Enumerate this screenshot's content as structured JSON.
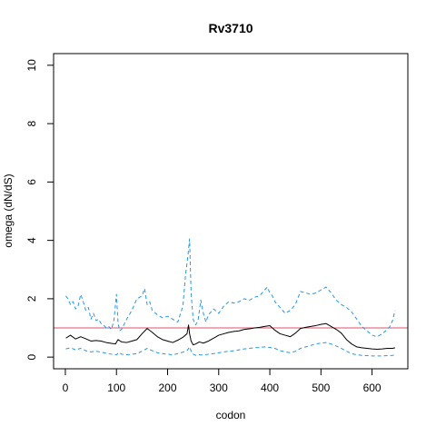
{
  "chart_data": {
    "type": "line",
    "title": "Rv3710",
    "xlabel": "codon",
    "ylabel": "omega (dN/dS)",
    "xlim": [
      -23,
      670
    ],
    "ylim": [
      -0.4,
      10.4
    ],
    "xticks": [
      0,
      100,
      200,
      300,
      400,
      500,
      600
    ],
    "yticks": [
      0,
      2,
      4,
      6,
      8,
      10
    ],
    "grid": false,
    "legend": "none",
    "reference_line": {
      "y": 1,
      "color": "#DF536B"
    },
    "series": [
      {
        "role": "estimate",
        "color": "#000000",
        "dash": "solid",
        "x": [
          1,
          10,
          20,
          30,
          40,
          50,
          60,
          70,
          80,
          90,
          98,
          103,
          110,
          120,
          130,
          140,
          150,
          160,
          170,
          180,
          190,
          200,
          210,
          220,
          230,
          238,
          241,
          243,
          246,
          250,
          255,
          262,
          270,
          280,
          290,
          300,
          310,
          320,
          330,
          340,
          350,
          360,
          370,
          380,
          390,
          400,
          410,
          420,
          430,
          440,
          450,
          460,
          470,
          480,
          490,
          500,
          510,
          520,
          530,
          540,
          550,
          560,
          570,
          580,
          590,
          600,
          610,
          620,
          630,
          640,
          645
        ],
        "y": [
          0.65,
          0.75,
          0.62,
          0.7,
          0.63,
          0.55,
          0.57,
          0.55,
          0.5,
          0.47,
          0.45,
          0.6,
          0.52,
          0.5,
          0.55,
          0.6,
          0.8,
          0.98,
          0.85,
          0.7,
          0.6,
          0.55,
          0.5,
          0.58,
          0.68,
          0.8,
          1.1,
          0.8,
          0.55,
          0.42,
          0.45,
          0.52,
          0.48,
          0.55,
          0.65,
          0.75,
          0.8,
          0.85,
          0.88,
          0.9,
          0.95,
          0.97,
          1.0,
          1.02,
          1.05,
          1.08,
          0.92,
          0.8,
          0.75,
          0.7,
          0.82,
          0.98,
          1.02,
          1.05,
          1.08,
          1.12,
          1.15,
          1.05,
          0.95,
          0.82,
          0.6,
          0.45,
          0.35,
          0.32,
          0.3,
          0.28,
          0.27,
          0.28,
          0.3,
          0.3,
          0.32
        ]
      },
      {
        "role": "upper-interval",
        "color": "#2297E6",
        "dash": "dashed",
        "x": [
          1,
          5,
          10,
          15,
          20,
          25,
          30,
          35,
          40,
          45,
          50,
          55,
          60,
          65,
          70,
          75,
          80,
          85,
          90,
          95,
          100,
          103,
          106,
          110,
          120,
          130,
          140,
          150,
          155,
          160,
          165,
          170,
          180,
          190,
          200,
          210,
          220,
          230,
          235,
          240,
          243,
          246,
          250,
          255,
          260,
          265,
          270,
          275,
          280,
          290,
          300,
          310,
          320,
          330,
          340,
          350,
          360,
          370,
          380,
          390,
          395,
          400,
          405,
          410,
          420,
          430,
          440,
          450,
          460,
          470,
          480,
          490,
          500,
          510,
          520,
          530,
          540,
          550,
          560,
          570,
          580,
          590,
          600,
          610,
          620,
          630,
          635,
          640,
          645
        ],
        "y": [
          2.1,
          2.0,
          1.8,
          1.9,
          1.65,
          1.75,
          2.15,
          1.9,
          1.6,
          1.7,
          1.3,
          1.5,
          1.25,
          1.3,
          1.15,
          1.1,
          1.0,
          1.05,
          0.95,
          1.25,
          2.15,
          1.2,
          0.9,
          0.95,
          1.3,
          1.6,
          2.0,
          2.1,
          2.35,
          1.8,
          1.9,
          1.6,
          1.45,
          1.35,
          1.4,
          1.3,
          1.2,
          1.75,
          2.8,
          3.5,
          4.05,
          2.2,
          1.3,
          1.1,
          1.3,
          1.95,
          1.5,
          1.2,
          1.45,
          1.65,
          1.5,
          1.75,
          1.9,
          1.85,
          1.9,
          2.0,
          1.95,
          2.05,
          2.1,
          2.3,
          2.4,
          2.2,
          2.1,
          1.9,
          1.7,
          1.5,
          1.6,
          1.8,
          2.25,
          2.2,
          2.15,
          2.2,
          2.3,
          2.4,
          2.2,
          1.95,
          1.8,
          1.7,
          1.55,
          1.3,
          1.05,
          0.9,
          0.75,
          0.7,
          0.8,
          0.95,
          1.05,
          1.25,
          1.6
        ]
      },
      {
        "role": "lower-interval",
        "color": "#2297E6",
        "dash": "dashed",
        "x": [
          1,
          10,
          20,
          30,
          40,
          50,
          60,
          70,
          80,
          90,
          100,
          105,
          110,
          120,
          130,
          140,
          150,
          160,
          170,
          180,
          190,
          200,
          210,
          220,
          230,
          238,
          243,
          248,
          255,
          262,
          270,
          280,
          290,
          300,
          310,
          320,
          330,
          340,
          350,
          360,
          370,
          380,
          390,
          400,
          410,
          420,
          430,
          440,
          450,
          460,
          470,
          480,
          490,
          500,
          510,
          520,
          530,
          540,
          550,
          560,
          570,
          580,
          590,
          600,
          610,
          620,
          630,
          640,
          645
        ],
        "y": [
          0.28,
          0.32,
          0.25,
          0.3,
          0.22,
          0.18,
          0.2,
          0.17,
          0.13,
          0.1,
          0.08,
          0.16,
          0.1,
          0.08,
          0.1,
          0.12,
          0.2,
          0.3,
          0.22,
          0.15,
          0.12,
          0.1,
          0.08,
          0.12,
          0.17,
          0.22,
          0.35,
          0.12,
          0.06,
          0.08,
          0.07,
          0.1,
          0.12,
          0.15,
          0.18,
          0.2,
          0.22,
          0.25,
          0.28,
          0.3,
          0.32,
          0.33,
          0.35,
          0.33,
          0.3,
          0.22,
          0.18,
          0.15,
          0.2,
          0.3,
          0.35,
          0.4,
          0.45,
          0.48,
          0.5,
          0.45,
          0.38,
          0.3,
          0.2,
          0.12,
          0.08,
          0.06,
          0.05,
          0.04,
          0.04,
          0.04,
          0.05,
          0.06,
          0.07
        ]
      }
    ]
  }
}
